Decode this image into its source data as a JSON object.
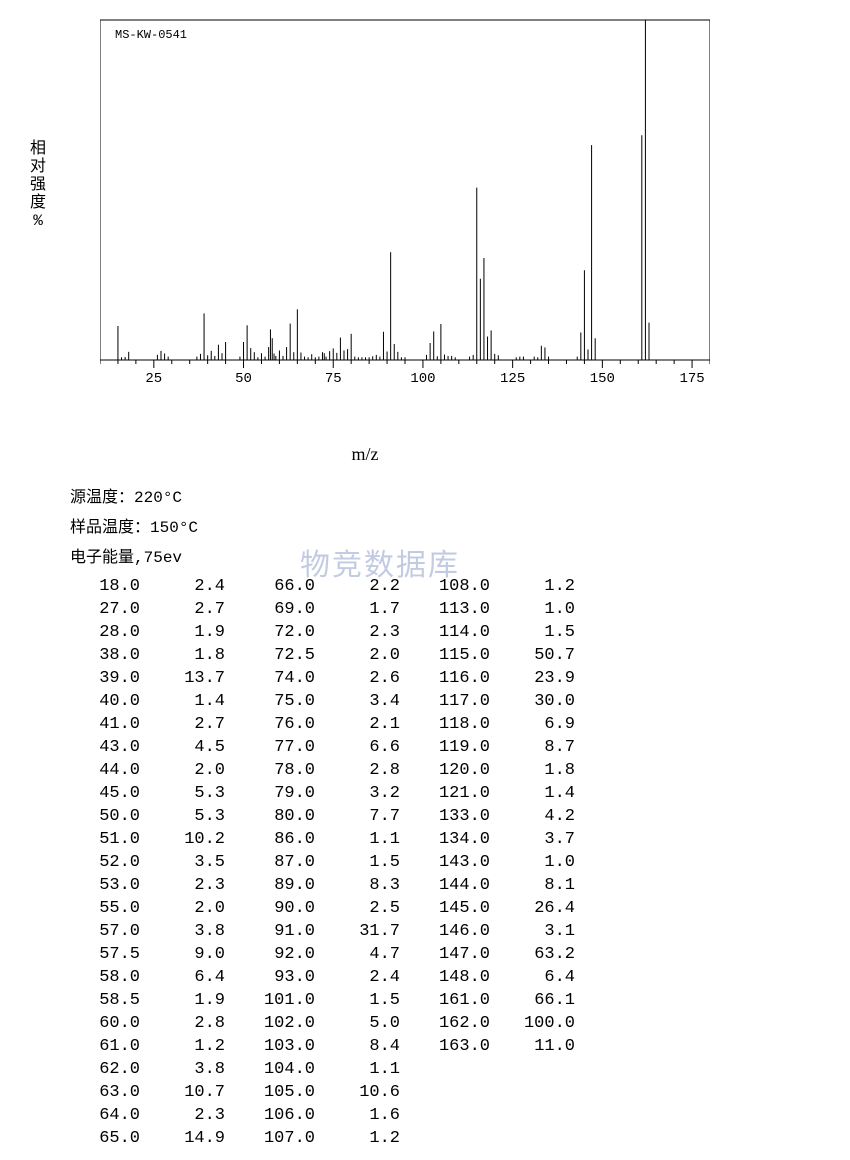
{
  "chart": {
    "type": "mass-spectrum",
    "sample_id": "MS-KW-0541",
    "xlabel": "m/z",
    "ylabel_chars": [
      "相",
      "对",
      "强",
      "度"
    ],
    "ylabel_unit": "%",
    "xlim": [
      10,
      180
    ],
    "ylim": [
      0,
      100
    ],
    "xticks": [
      25,
      50,
      75,
      100,
      125,
      150,
      175
    ],
    "yticks": [
      0,
      20,
      40,
      60,
      80,
      100
    ],
    "axis_color": "#000000",
    "tick_len_major": 8,
    "tick_len_minor": 4,
    "xtick_minor_step": 5,
    "background": "#ffffff",
    "line_color": "#000000",
    "line_width": 1,
    "label_fontsize": 16,
    "tick_fontsize": 14,
    "extra_peaks": [
      {
        "mz": 15.0,
        "int": 10.0
      },
      {
        "mz": 16.0,
        "int": 0.8
      },
      {
        "mz": 17.0,
        "int": 0.9
      },
      {
        "mz": 26.0,
        "int": 1.5
      },
      {
        "mz": 29.0,
        "int": 1.0
      },
      {
        "mz": 37.0,
        "int": 1.0
      },
      {
        "mz": 42.0,
        "int": 1.2
      },
      {
        "mz": 49.0,
        "int": 1.0
      },
      {
        "mz": 54.0,
        "int": 0.8
      },
      {
        "mz": 56.0,
        "int": 1.0
      },
      {
        "mz": 59.0,
        "int": 1.2
      },
      {
        "mz": 67.0,
        "int": 1.0
      },
      {
        "mz": 68.0,
        "int": 0.8
      },
      {
        "mz": 70.0,
        "int": 0.8
      },
      {
        "mz": 71.0,
        "int": 1.0
      },
      {
        "mz": 73.0,
        "int": 1.0
      },
      {
        "mz": 81.0,
        "int": 1.0
      },
      {
        "mz": 82.0,
        "int": 0.8
      },
      {
        "mz": 83.0,
        "int": 0.8
      },
      {
        "mz": 84.0,
        "int": 0.8
      },
      {
        "mz": 85.0,
        "int": 0.8
      },
      {
        "mz": 88.0,
        "int": 1.0
      },
      {
        "mz": 94.0,
        "int": 0.8
      },
      {
        "mz": 95.0,
        "int": 0.8
      },
      {
        "mz": 109.0,
        "int": 0.8
      },
      {
        "mz": 126.0,
        "int": 0.8
      },
      {
        "mz": 127.0,
        "int": 1.0
      },
      {
        "mz": 128.0,
        "int": 1.0
      },
      {
        "mz": 131.0,
        "int": 1.0
      },
      {
        "mz": 132.0,
        "int": 0.8
      },
      {
        "mz": 135.0,
        "int": 1.0
      }
    ]
  },
  "meta": {
    "source_temp_label": "源温度：",
    "source_temp_value": "220°C",
    "sample_temp_label": "样品温度：",
    "sample_temp_value": "150°C",
    "electron_energy_label": "电子能量,",
    "electron_energy_value": "75ev"
  },
  "watermark": "物竞数据库",
  "table": {
    "columns": [
      [
        {
          "mz": "18.0",
          "int": "2.4"
        },
        {
          "mz": "27.0",
          "int": "2.7"
        },
        {
          "mz": "28.0",
          "int": "1.9"
        },
        {
          "mz": "38.0",
          "int": "1.8"
        },
        {
          "mz": "39.0",
          "int": "13.7"
        },
        {
          "mz": "40.0",
          "int": "1.4"
        },
        {
          "mz": "41.0",
          "int": "2.7"
        },
        {
          "mz": "43.0",
          "int": "4.5"
        },
        {
          "mz": "44.0",
          "int": "2.0"
        },
        {
          "mz": "45.0",
          "int": "5.3"
        },
        {
          "mz": "50.0",
          "int": "5.3"
        },
        {
          "mz": "51.0",
          "int": "10.2"
        },
        {
          "mz": "52.0",
          "int": "3.5"
        },
        {
          "mz": "53.0",
          "int": "2.3"
        },
        {
          "mz": "55.0",
          "int": "2.0"
        },
        {
          "mz": "57.0",
          "int": "3.8"
        },
        {
          "mz": "57.5",
          "int": "9.0"
        },
        {
          "mz": "58.0",
          "int": "6.4"
        },
        {
          "mz": "58.5",
          "int": "1.9"
        },
        {
          "mz": "60.0",
          "int": "2.8"
        },
        {
          "mz": "61.0",
          "int": "1.2"
        },
        {
          "mz": "62.0",
          "int": "3.8"
        },
        {
          "mz": "63.0",
          "int": "10.7"
        },
        {
          "mz": "64.0",
          "int": "2.3"
        },
        {
          "mz": "65.0",
          "int": "14.9"
        }
      ],
      [
        {
          "mz": "66.0",
          "int": "2.2"
        },
        {
          "mz": "69.0",
          "int": "1.7"
        },
        {
          "mz": "72.0",
          "int": "2.3"
        },
        {
          "mz": "72.5",
          "int": "2.0"
        },
        {
          "mz": "74.0",
          "int": "2.6"
        },
        {
          "mz": "75.0",
          "int": "3.4"
        },
        {
          "mz": "76.0",
          "int": "2.1"
        },
        {
          "mz": "77.0",
          "int": "6.6"
        },
        {
          "mz": "78.0",
          "int": "2.8"
        },
        {
          "mz": "79.0",
          "int": "3.2"
        },
        {
          "mz": "80.0",
          "int": "7.7"
        },
        {
          "mz": "86.0",
          "int": "1.1"
        },
        {
          "mz": "87.0",
          "int": "1.5"
        },
        {
          "mz": "89.0",
          "int": "8.3"
        },
        {
          "mz": "90.0",
          "int": "2.5"
        },
        {
          "mz": "91.0",
          "int": "31.7"
        },
        {
          "mz": "92.0",
          "int": "4.7"
        },
        {
          "mz": "93.0",
          "int": "2.4"
        },
        {
          "mz": "101.0",
          "int": "1.5"
        },
        {
          "mz": "102.0",
          "int": "5.0"
        },
        {
          "mz": "103.0",
          "int": "8.4"
        },
        {
          "mz": "104.0",
          "int": "1.1"
        },
        {
          "mz": "105.0",
          "int": "10.6"
        },
        {
          "mz": "106.0",
          "int": "1.6"
        },
        {
          "mz": "107.0",
          "int": "1.2"
        }
      ],
      [
        {
          "mz": "108.0",
          "int": "1.2"
        },
        {
          "mz": "113.0",
          "int": "1.0"
        },
        {
          "mz": "114.0",
          "int": "1.5"
        },
        {
          "mz": "115.0",
          "int": "50.7"
        },
        {
          "mz": "116.0",
          "int": "23.9"
        },
        {
          "mz": "117.0",
          "int": "30.0"
        },
        {
          "mz": "118.0",
          "int": "6.9"
        },
        {
          "mz": "119.0",
          "int": "8.7"
        },
        {
          "mz": "120.0",
          "int": "1.8"
        },
        {
          "mz": "121.0",
          "int": "1.4"
        },
        {
          "mz": "133.0",
          "int": "4.2"
        },
        {
          "mz": "134.0",
          "int": "3.7"
        },
        {
          "mz": "143.0",
          "int": "1.0"
        },
        {
          "mz": "144.0",
          "int": "8.1"
        },
        {
          "mz": "145.0",
          "int": "26.4"
        },
        {
          "mz": "146.0",
          "int": "3.1"
        },
        {
          "mz": "147.0",
          "int": "63.2"
        },
        {
          "mz": "148.0",
          "int": "6.4"
        },
        {
          "mz": "161.0",
          "int": "66.1"
        },
        {
          "mz": "162.0",
          "int": "100.0"
        },
        {
          "mz": "163.0",
          "int": "11.0"
        }
      ]
    ]
  }
}
